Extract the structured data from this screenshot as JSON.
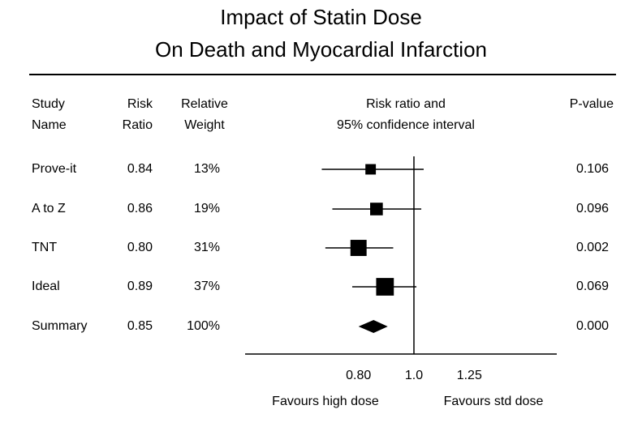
{
  "title": [
    "Impact of Statin Dose",
    "On Death and Myocardial Infarction"
  ],
  "headers": {
    "name": [
      "Study",
      "Name"
    ],
    "ratio": [
      "Risk",
      "Ratio"
    ],
    "weight": [
      "Relative",
      "Weight"
    ],
    "ci": [
      "Risk ratio and",
      "95% confidence interval"
    ],
    "p": [
      "P-value"
    ]
  },
  "chart_data": {
    "type": "forest",
    "x_scale": "log",
    "xlim": [
      0.6,
      1.5
    ],
    "ticks": [
      {
        "value": 0.8,
        "label": "0.80"
      },
      {
        "value": 1.0,
        "label": "1.0"
      },
      {
        "value": 1.25,
        "label": "1.25"
      }
    ],
    "reference_line": 1.0,
    "favours": {
      "left": "Favours high dose",
      "right": "Favours std dose"
    },
    "studies": [
      {
        "name": "Prove-it",
        "ratio_label": "0.84",
        "ratio": 0.84,
        "lower": 0.69,
        "upper": 1.04,
        "weight_label": "13%",
        "weight": 13,
        "p": "0.106"
      },
      {
        "name": "A to Z",
        "ratio_label": "0.86",
        "ratio": 0.86,
        "lower": 0.72,
        "upper": 1.03,
        "weight_label": "19%",
        "weight": 19,
        "p": "0.096"
      },
      {
        "name": "TNT",
        "ratio_label": "0.80",
        "ratio": 0.8,
        "lower": 0.7,
        "upper": 0.92,
        "weight_label": "31%",
        "weight": 31,
        "p": "0.002"
      },
      {
        "name": "Ideal",
        "ratio_label": "0.89",
        "ratio": 0.89,
        "lower": 0.78,
        "upper": 1.01,
        "weight_label": "37%",
        "weight": 37,
        "p": "0.069"
      }
    ],
    "summary": {
      "name": "Summary",
      "ratio_label": "0.85",
      "ratio": 0.85,
      "lower": 0.8,
      "upper": 0.9,
      "weight_label": "100%",
      "p": "0.000"
    }
  }
}
